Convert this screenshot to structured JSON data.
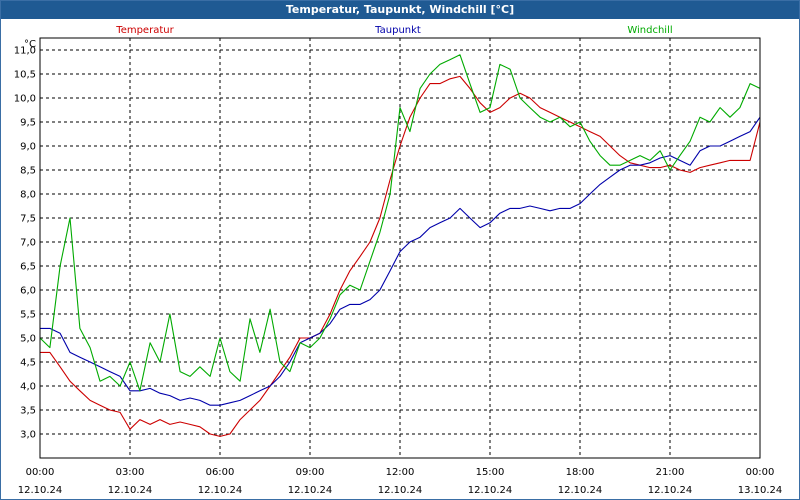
{
  "window": {
    "title": "Temperatur, Taupunkt, Windchill [°C]"
  },
  "chart_data": {
    "type": "line",
    "title": "Temperatur, Taupunkt, Windchill [°C]",
    "ylabel": "°C",
    "ylim": [
      2.5,
      11.25
    ],
    "yticks": [
      3.0,
      3.5,
      4.0,
      4.5,
      5.0,
      5.5,
      6.0,
      6.5,
      7.0,
      7.5,
      8.0,
      8.5,
      9.0,
      9.5,
      10.0,
      10.5,
      11.0
    ],
    "ytick_labels": [
      "3,0",
      "3,5",
      "4,0",
      "4,5",
      "5,0",
      "5,5",
      "6,0",
      "6,5",
      "7,0",
      "7,5",
      "8,0",
      "8,5",
      "9,0",
      "9,5",
      "10,0",
      "10,5",
      "11,0"
    ],
    "xlim": [
      0,
      24
    ],
    "xticks": [
      0,
      3,
      6,
      9,
      12,
      15,
      18,
      21,
      24
    ],
    "xtick_times": [
      "00:00",
      "03:00",
      "06:00",
      "09:00",
      "12:00",
      "15:00",
      "18:00",
      "21:00",
      "00:00"
    ],
    "xtick_dates": [
      "12.10.24",
      "12.10.24",
      "12.10.24",
      "12.10.24",
      "12.10.24",
      "12.10.24",
      "12.10.24",
      "12.10.24",
      "13.10.24"
    ],
    "grid": true,
    "legend": "top",
    "series": [
      {
        "name": "Temperatur",
        "color": "#cc0000",
        "points": [
          [
            0,
            4.7
          ],
          [
            0.33,
            4.7
          ],
          [
            0.67,
            4.4
          ],
          [
            1,
            4.1
          ],
          [
            1.33,
            3.9
          ],
          [
            1.67,
            3.7
          ],
          [
            2,
            3.6
          ],
          [
            2.33,
            3.5
          ],
          [
            2.67,
            3.45
          ],
          [
            3,
            3.1
          ],
          [
            3.33,
            3.3
          ],
          [
            3.67,
            3.2
          ],
          [
            4,
            3.3
          ],
          [
            4.33,
            3.2
          ],
          [
            4.67,
            3.25
          ],
          [
            5,
            3.2
          ],
          [
            5.33,
            3.15
          ],
          [
            5.67,
            3.0
          ],
          [
            6,
            2.95
          ],
          [
            6.33,
            3.0
          ],
          [
            6.67,
            3.3
          ],
          [
            7,
            3.5
          ],
          [
            7.33,
            3.7
          ],
          [
            7.67,
            4.0
          ],
          [
            8,
            4.3
          ],
          [
            8.33,
            4.6
          ],
          [
            8.67,
            5.0
          ],
          [
            9,
            5.0
          ],
          [
            9.33,
            5.1
          ],
          [
            9.67,
            5.5
          ],
          [
            10,
            6.0
          ],
          [
            10.33,
            6.4
          ],
          [
            10.67,
            6.7
          ],
          [
            11,
            7.0
          ],
          [
            11.33,
            7.5
          ],
          [
            11.67,
            8.3
          ],
          [
            12,
            9.0
          ],
          [
            12.33,
            9.6
          ],
          [
            12.67,
            10.0
          ],
          [
            13,
            10.3
          ],
          [
            13.33,
            10.3
          ],
          [
            13.67,
            10.4
          ],
          [
            14,
            10.45
          ],
          [
            14.33,
            10.2
          ],
          [
            14.67,
            9.9
          ],
          [
            15,
            9.7
          ],
          [
            15.33,
            9.8
          ],
          [
            15.67,
            10.0
          ],
          [
            16,
            10.1
          ],
          [
            16.33,
            10.0
          ],
          [
            16.67,
            9.8
          ],
          [
            17,
            9.7
          ],
          [
            17.33,
            9.6
          ],
          [
            17.67,
            9.5
          ],
          [
            18,
            9.4
          ],
          [
            18.33,
            9.3
          ],
          [
            18.67,
            9.2
          ],
          [
            19,
            9.0
          ],
          [
            19.33,
            8.8
          ],
          [
            19.67,
            8.65
          ],
          [
            20,
            8.6
          ],
          [
            20.33,
            8.55
          ],
          [
            20.67,
            8.55
          ],
          [
            21,
            8.6
          ],
          [
            21.33,
            8.5
          ],
          [
            21.67,
            8.45
          ],
          [
            22,
            8.55
          ],
          [
            22.33,
            8.6
          ],
          [
            22.67,
            8.65
          ],
          [
            23,
            8.7
          ],
          [
            23.33,
            8.7
          ],
          [
            23.67,
            8.7
          ],
          [
            24,
            9.5
          ]
        ]
      },
      {
        "name": "Taupunkt",
        "color": "#0000aa",
        "points": [
          [
            0,
            5.2
          ],
          [
            0.33,
            5.2
          ],
          [
            0.67,
            5.1
          ],
          [
            1,
            4.7
          ],
          [
            1.33,
            4.6
          ],
          [
            1.67,
            4.5
          ],
          [
            2,
            4.4
          ],
          [
            2.33,
            4.3
          ],
          [
            2.67,
            4.2
          ],
          [
            3,
            3.9
          ],
          [
            3.33,
            3.9
          ],
          [
            3.67,
            3.95
          ],
          [
            4,
            3.85
          ],
          [
            4.33,
            3.8
          ],
          [
            4.67,
            3.7
          ],
          [
            5,
            3.75
          ],
          [
            5.33,
            3.7
          ],
          [
            5.67,
            3.6
          ],
          [
            6,
            3.6
          ],
          [
            6.33,
            3.65
          ],
          [
            6.67,
            3.7
          ],
          [
            7,
            3.8
          ],
          [
            7.33,
            3.9
          ],
          [
            7.67,
            4.0
          ],
          [
            8,
            4.2
          ],
          [
            8.33,
            4.5
          ],
          [
            8.67,
            4.9
          ],
          [
            9,
            5.0
          ],
          [
            9.33,
            5.1
          ],
          [
            9.67,
            5.3
          ],
          [
            10,
            5.6
          ],
          [
            10.33,
            5.7
          ],
          [
            10.67,
            5.7
          ],
          [
            11,
            5.8
          ],
          [
            11.33,
            6.0
          ],
          [
            11.67,
            6.4
          ],
          [
            12,
            6.8
          ],
          [
            12.33,
            7.0
          ],
          [
            12.67,
            7.1
          ],
          [
            13,
            7.3
          ],
          [
            13.33,
            7.4
          ],
          [
            13.67,
            7.5
          ],
          [
            14,
            7.7
          ],
          [
            14.33,
            7.5
          ],
          [
            14.67,
            7.3
          ],
          [
            15,
            7.4
          ],
          [
            15.33,
            7.6
          ],
          [
            15.67,
            7.7
          ],
          [
            16,
            7.7
          ],
          [
            16.33,
            7.75
          ],
          [
            16.67,
            7.7
          ],
          [
            17,
            7.65
          ],
          [
            17.33,
            7.7
          ],
          [
            17.67,
            7.7
          ],
          [
            18,
            7.8
          ],
          [
            18.33,
            8.0
          ],
          [
            18.67,
            8.2
          ],
          [
            19,
            8.35
          ],
          [
            19.33,
            8.5
          ],
          [
            19.67,
            8.6
          ],
          [
            20,
            8.6
          ],
          [
            20.33,
            8.65
          ],
          [
            20.67,
            8.75
          ],
          [
            21,
            8.8
          ],
          [
            21.33,
            8.7
          ],
          [
            21.67,
            8.6
          ],
          [
            22,
            8.9
          ],
          [
            22.33,
            9.0
          ],
          [
            22.67,
            9.0
          ],
          [
            23,
            9.1
          ],
          [
            23.33,
            9.2
          ],
          [
            23.67,
            9.3
          ],
          [
            24,
            9.6
          ]
        ]
      },
      {
        "name": "Windchill",
        "color": "#00aa00",
        "points": [
          [
            0,
            5.0
          ],
          [
            0.33,
            4.8
          ],
          [
            0.67,
            6.5
          ],
          [
            1,
            7.5
          ],
          [
            1.33,
            5.2
          ],
          [
            1.67,
            4.8
          ],
          [
            2,
            4.1
          ],
          [
            2.33,
            4.2
          ],
          [
            2.67,
            4.0
          ],
          [
            3,
            4.5
          ],
          [
            3.33,
            3.9
          ],
          [
            3.67,
            4.9
          ],
          [
            4,
            4.5
          ],
          [
            4.33,
            5.5
          ],
          [
            4.67,
            4.3
          ],
          [
            5,
            4.2
          ],
          [
            5.33,
            4.4
          ],
          [
            5.67,
            4.2
          ],
          [
            6,
            5.0
          ],
          [
            6.33,
            4.3
          ],
          [
            6.67,
            4.1
          ],
          [
            7,
            5.4
          ],
          [
            7.33,
            4.7
          ],
          [
            7.67,
            5.6
          ],
          [
            8,
            4.5
          ],
          [
            8.33,
            4.3
          ],
          [
            8.67,
            4.9
          ],
          [
            9,
            4.8
          ],
          [
            9.33,
            5.0
          ],
          [
            9.67,
            5.4
          ],
          [
            10,
            5.9
          ],
          [
            10.33,
            6.1
          ],
          [
            10.67,
            6.0
          ],
          [
            11,
            6.6
          ],
          [
            11.33,
            7.2
          ],
          [
            11.67,
            8.0
          ],
          [
            12,
            9.8
          ],
          [
            12.33,
            9.3
          ],
          [
            12.67,
            10.2
          ],
          [
            13,
            10.5
          ],
          [
            13.33,
            10.7
          ],
          [
            13.67,
            10.8
          ],
          [
            14,
            10.9
          ],
          [
            14.33,
            10.3
          ],
          [
            14.67,
            9.7
          ],
          [
            15,
            9.8
          ],
          [
            15.33,
            10.7
          ],
          [
            15.67,
            10.6
          ],
          [
            16,
            10.0
          ],
          [
            16.33,
            9.8
          ],
          [
            16.67,
            9.6
          ],
          [
            17,
            9.5
          ],
          [
            17.33,
            9.6
          ],
          [
            17.67,
            9.4
          ],
          [
            18,
            9.5
          ],
          [
            18.33,
            9.1
          ],
          [
            18.67,
            8.8
          ],
          [
            19,
            8.6
          ],
          [
            19.33,
            8.6
          ],
          [
            19.67,
            8.7
          ],
          [
            20,
            8.8
          ],
          [
            20.33,
            8.7
          ],
          [
            20.67,
            8.9
          ],
          [
            21,
            8.5
          ],
          [
            21.33,
            8.8
          ],
          [
            21.67,
            9.1
          ],
          [
            22,
            9.6
          ],
          [
            22.33,
            9.5
          ],
          [
            22.67,
            9.8
          ],
          [
            23,
            9.6
          ],
          [
            23.33,
            9.8
          ],
          [
            23.67,
            10.3
          ],
          [
            24,
            10.2
          ]
        ]
      }
    ]
  }
}
